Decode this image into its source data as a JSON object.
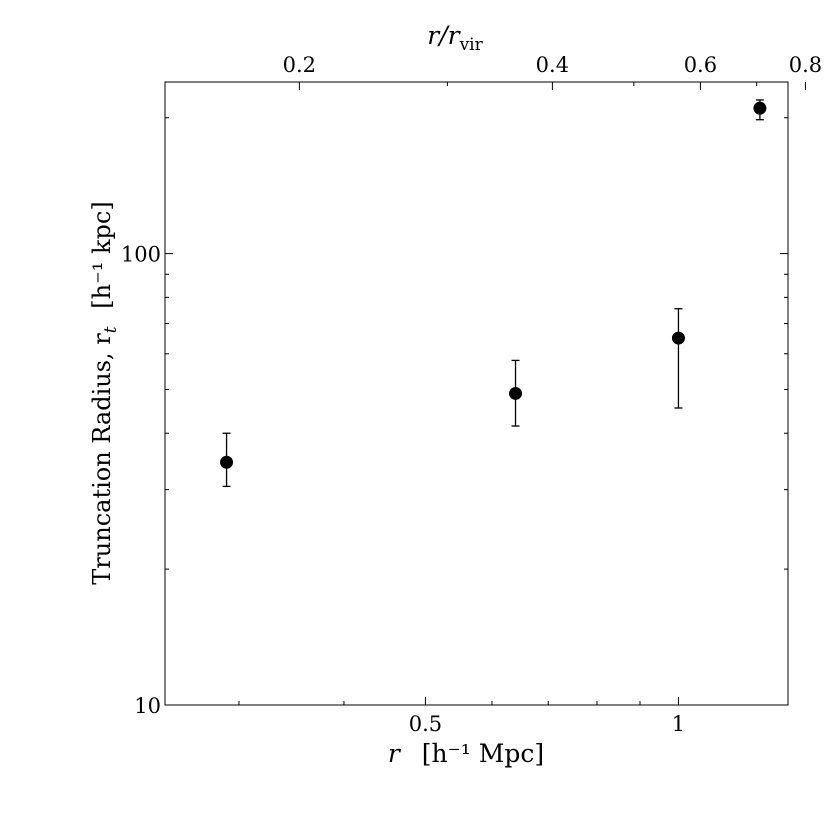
{
  "chart_data": {
    "type": "scatter",
    "x_scale": "log",
    "y_scale": "log",
    "xlim": [
      0.245,
      1.35
    ],
    "ylim": [
      10,
      240
    ],
    "xlabel": "r",
    "xlabel_units": "[h⁻¹ Mpc]",
    "ylabel": "Truncation Radius, r",
    "ylabel_sub": "t",
    "ylabel_units": "[h⁻¹ kpc]",
    "top_label": "r/r",
    "top_label_sub": "vir",
    "x_ticks": [
      {
        "value": 0.5,
        "label": "0.5"
      },
      {
        "value": 1,
        "label": "1"
      }
    ],
    "x_minor_ticks": [
      0.3,
      0.4,
      0.6,
      0.7,
      0.8,
      0.9
    ],
    "y_ticks": [
      {
        "value": 10,
        "label": "10"
      },
      {
        "value": 100,
        "label": "100"
      }
    ],
    "y_minor_ticks": [
      20,
      30,
      40,
      50,
      60,
      70,
      80,
      90,
      200
    ],
    "top_axis_r_per_rvir": 1.77,
    "top_ticks": [
      {
        "value": 0.2,
        "label": "0.2"
      },
      {
        "value": 0.4,
        "label": "0.4"
      },
      {
        "value": 0.6,
        "label": "0.6"
      },
      {
        "value": 0.8,
        "label": "0.8"
      }
    ],
    "top_minor_ticks": [
      0.3,
      0.5,
      0.7
    ],
    "series": [
      {
        "points": [
          {
            "x": 0.29,
            "y": 34.5,
            "y_low": 30.5,
            "y_high": 40.0
          },
          {
            "x": 0.64,
            "y": 49.0,
            "y_low": 41.5,
            "y_high": 58.0
          },
          {
            "x": 1.0,
            "y": 65.0,
            "y_low": 45.5,
            "y_high": 75.5
          },
          {
            "x": 1.25,
            "y": 210.0,
            "y_low": 198.0,
            "y_high": 219.0
          }
        ]
      }
    ],
    "grid": false
  }
}
